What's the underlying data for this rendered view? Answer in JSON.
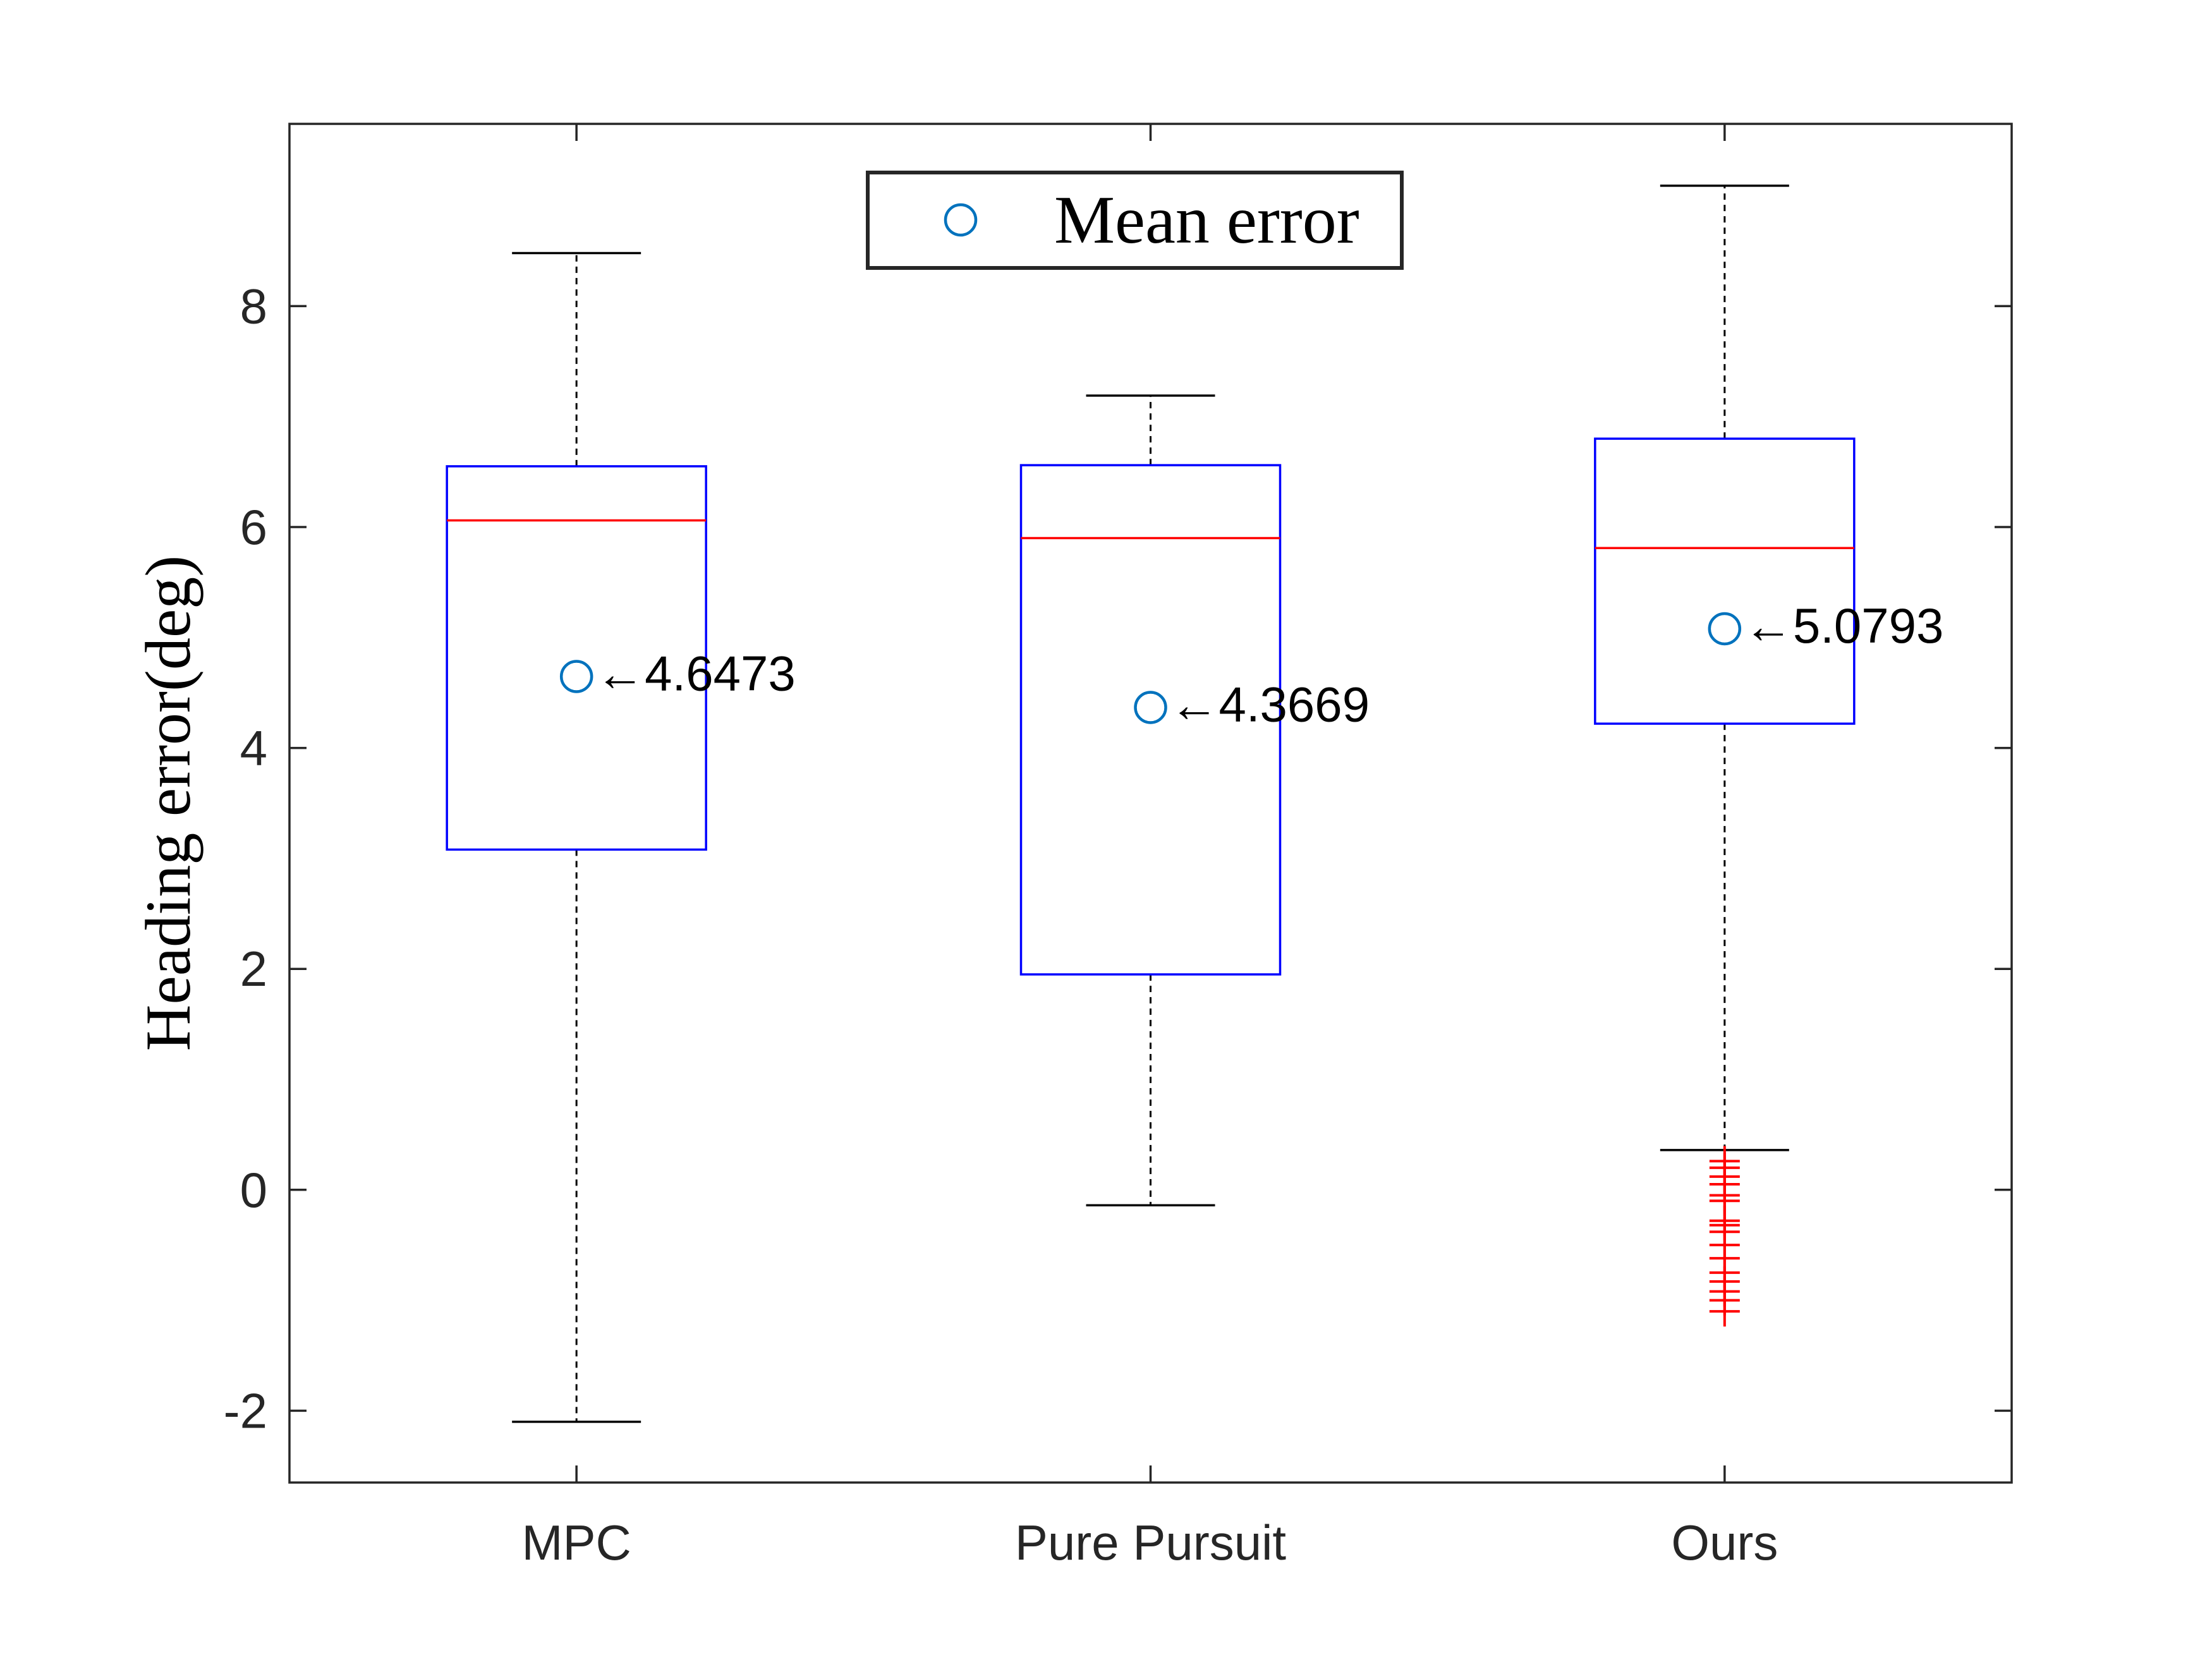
{
  "chart_data": {
    "type": "box",
    "title": "",
    "xlabel": "",
    "ylabel": "Heading error(deg)",
    "ylim": [
      -2.65,
      9.65
    ],
    "yticks": [
      -2,
      0,
      2,
      4,
      6,
      8
    ],
    "yticklabels": [
      "-2",
      "0",
      "2",
      "4",
      "6",
      "8"
    ],
    "categories": [
      "MPC",
      "Pure Pursuit",
      "Ours"
    ],
    "boxes": [
      {
        "whisker_low": -2.1,
        "q1": 3.08,
        "median": 6.06,
        "q3": 6.55,
        "whisker_high": 8.48,
        "outliers": []
      },
      {
        "whisker_low": -0.14,
        "q1": 1.95,
        "median": 5.9,
        "q3": 6.56,
        "whisker_high": 7.19,
        "outliers": []
      },
      {
        "whisker_low": 0.36,
        "q1": 4.22,
        "median": 5.81,
        "q3": 6.8,
        "whisker_high": 9.09,
        "outliers": [
          0.26,
          0.2,
          0.12,
          0.05,
          -0.05,
          -0.1,
          -0.28,
          -0.32,
          -0.38,
          -0.5,
          -0.62,
          -0.75,
          -0.83,
          -0.92,
          -1.0,
          -1.1
        ]
      }
    ],
    "means": [
      4.6473,
      4.3669,
      5.0793
    ],
    "mean_labels": [
      "←4.6473",
      "←4.3669",
      "←5.0793"
    ],
    "legend": {
      "entries": [
        "Mean error"
      ],
      "location": "top-center"
    },
    "colors": {
      "box": "#0000ff",
      "median": "#ff0000",
      "whisker": "#000000",
      "outlier": "#ff0000",
      "mean_marker": "#0072bd",
      "axes": "#262626"
    },
    "grid": false
  }
}
